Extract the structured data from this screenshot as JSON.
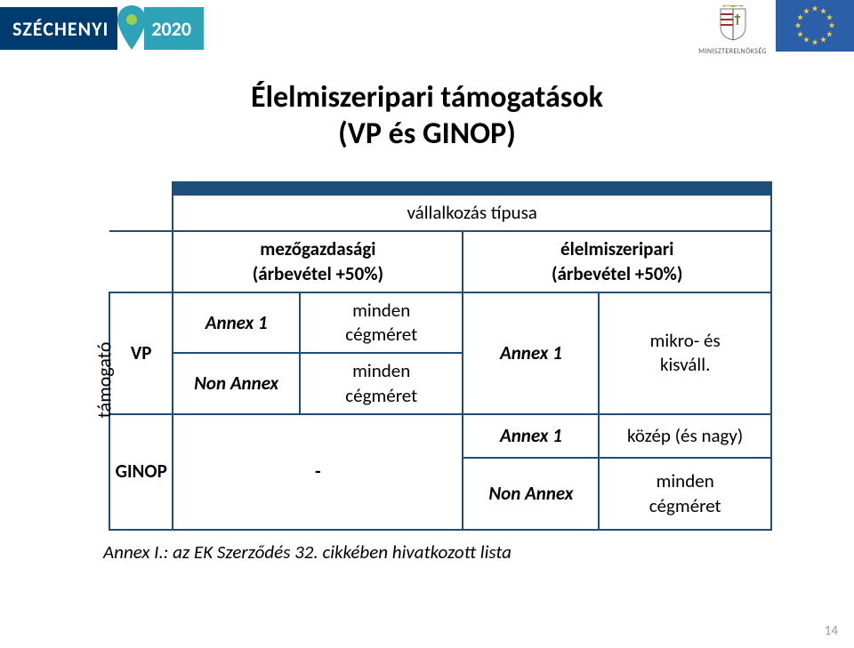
{
  "brand": {
    "name": "SZÉCHENYI",
    "year": "2020",
    "pin_color": "#2ea3b7",
    "pin_dot": "#9ed04b",
    "bar_color": "#003b6f"
  },
  "ministry_label": "MINISZTERELNÖKSÉG",
  "eu_flag": {
    "bg": "#2b5fa8",
    "star": "#f2d044"
  },
  "title_line1": "Élelmiszeripari támogatások",
  "title_line2": "(VP és GINOP)",
  "y_axis_label": "támogató",
  "table": {
    "top_header": "vállalkozás típusa",
    "col_a": "mezőgazdasági\n(árbevétel +50%)",
    "col_b": "élelmiszeripari\n(árbevétel +50%)",
    "vp": "VP",
    "ginop": "GINOP",
    "annex1": "Annex 1",
    "non_annex": "Non Annex",
    "minden_cegmeret": "minden\ncégméret",
    "mikro_kisvall": "mikro- és\nkisváll.",
    "kozep_nagy": "közép (és nagy)",
    "dash": "-"
  },
  "footnote": "Annex I.: az EK Szerződés 32. cikkében hivatkozott lista",
  "page_number": "14",
  "colors": {
    "table_border": "#1f4e79",
    "text": "#000000"
  }
}
